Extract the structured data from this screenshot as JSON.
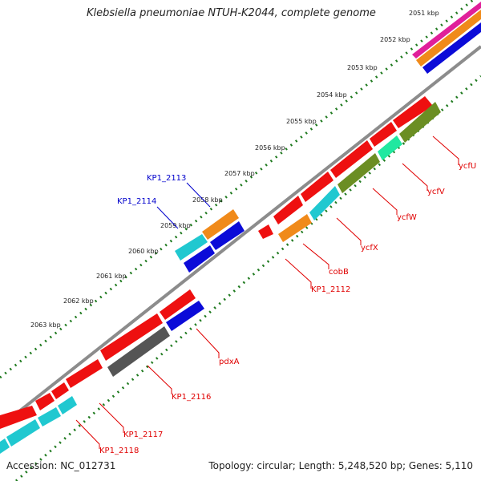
{
  "title": "Klebsiella pneumoniae NTUH-K2044, complete genome",
  "footer": {
    "accession": "Accession: NC_012731",
    "summary": "Topology: circular; Length: 5,248,520 bp; Genes: 5,110"
  },
  "colors": {
    "backbone": "#8c8c8c",
    "ticks": "#1f7a1f",
    "label_reverse": "#e00000",
    "label_forward": "#0000cc",
    "callout_reverse": "#e00000",
    "callout_forward": "#0000cc"
  },
  "scale": {
    "unit": "kbp",
    "ticks": [
      {
        "label": "2051 kbp"
      },
      {
        "label": "2052 kbp"
      },
      {
        "label": "2053 kbp"
      },
      {
        "label": "2054 kbp"
      },
      {
        "label": "2055 kbp"
      },
      {
        "label": "2056 kbp"
      },
      {
        "label": "2057 kbp"
      },
      {
        "label": "2058 kbp"
      },
      {
        "label": "2059 kbp"
      },
      {
        "label": "2060 kbp"
      },
      {
        "label": "2061 kbp"
      },
      {
        "label": "2062 kbp"
      },
      {
        "label": "2063 kbp"
      }
    ]
  },
  "gene_labels": [
    {
      "text": "ycfU",
      "strand": "reverse"
    },
    {
      "text": "ycfV",
      "strand": "reverse"
    },
    {
      "text": "ycfW",
      "strand": "reverse"
    },
    {
      "text": "ycfX",
      "strand": "reverse"
    },
    {
      "text": "cobB",
      "strand": "reverse"
    },
    {
      "text": "KP1_2112",
      "strand": "reverse"
    },
    {
      "text": "pdxA",
      "strand": "reverse"
    },
    {
      "text": "KP1_2116",
      "strand": "reverse"
    },
    {
      "text": "KP1_2117",
      "strand": "reverse"
    },
    {
      "text": "KP1_2118",
      "strand": "reverse"
    },
    {
      "text": "KP1_2113",
      "strand": "forward"
    },
    {
      "text": "KP1_2114",
      "strand": "forward"
    }
  ]
}
